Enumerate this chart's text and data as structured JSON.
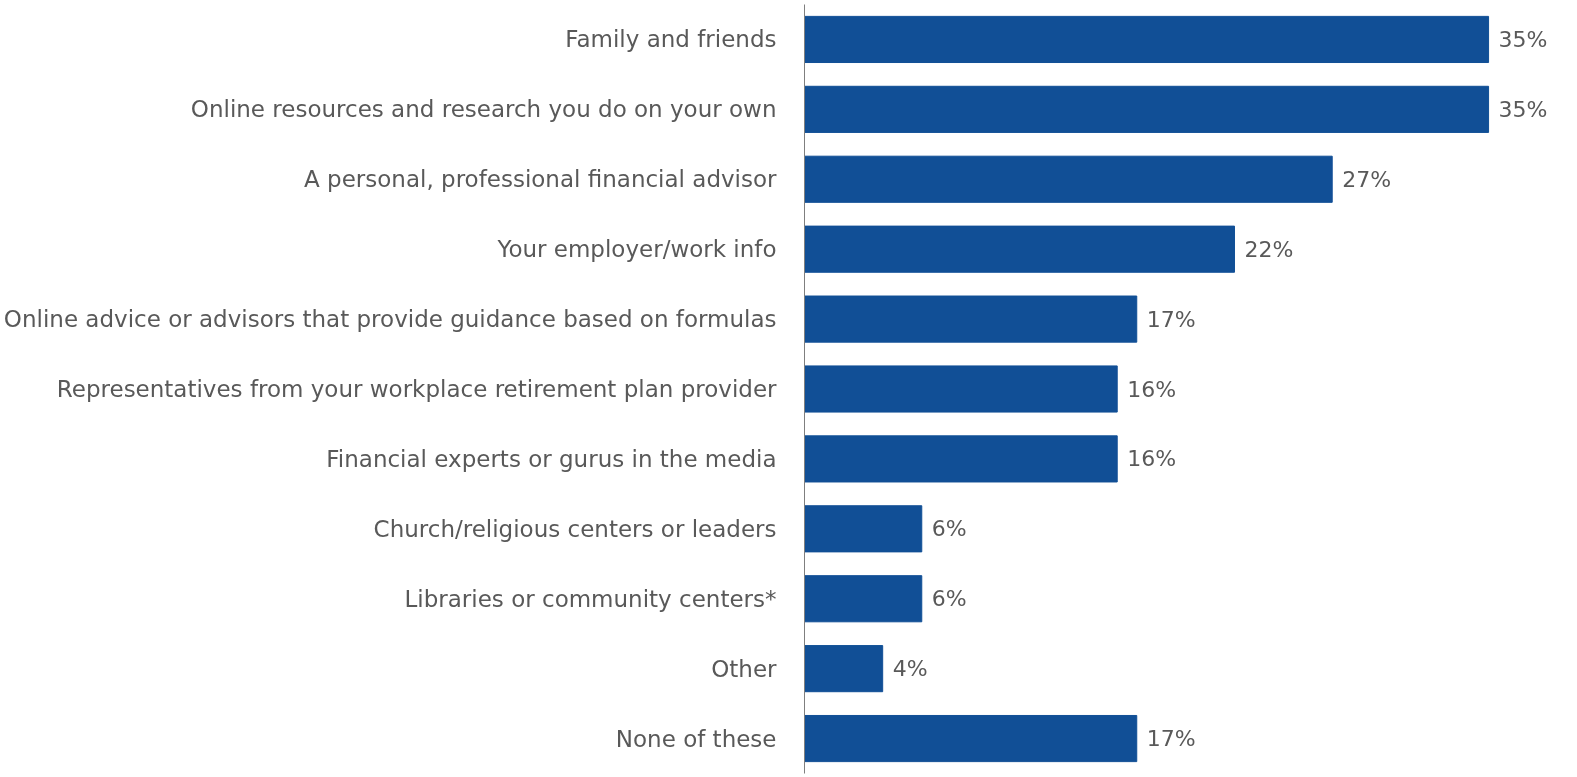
{
  "chart_data": {
    "type": "bar",
    "orientation": "horizontal",
    "categories": [
      "Family and friends",
      "Online resources and research you do on your own",
      "A personal, professional financial advisor",
      "Your employer/work info",
      "Online advice or advisors that provide guidance based on formulas",
      "Representatives from your workplace retirement plan provider",
      "Financial experts or gurus in the media",
      "Church/religious centers or leaders",
      "Libraries or community centers*",
      "Other",
      "None of these"
    ],
    "values": [
      35,
      35,
      27,
      22,
      17,
      16,
      16,
      6,
      6,
      4,
      17
    ],
    "value_labels": [
      "35%",
      "35%",
      "27%",
      "22%",
      "17%",
      "16%",
      "16%",
      "6%",
      "6%",
      "4%",
      "17%"
    ],
    "color": "#114f96",
    "grid": false,
    "tick_labels": "y"
  }
}
